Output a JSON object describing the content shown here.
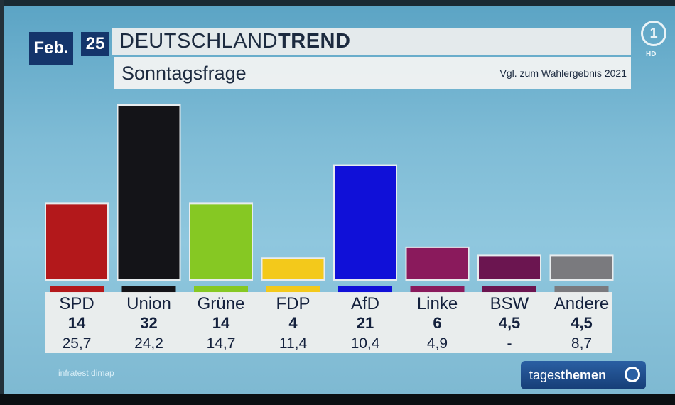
{
  "header": {
    "month": "Feb.",
    "year": "25",
    "title_regular": "DEUTSCHLAND",
    "title_bold": "TREND",
    "subtitle": "Sonntagsfrage",
    "comparison_note": "Vgl. zum Wahlergebnis 2021"
  },
  "footer": {
    "source": "infratest dimap",
    "program_regular": "tages",
    "program_bold": "themen"
  },
  "channel": {
    "logo": "1",
    "hd": "HD"
  },
  "chart_data": {
    "type": "bar",
    "categories": [
      "SPD",
      "Union",
      "Grüne",
      "FDP",
      "AfD",
      "Linke",
      "BSW",
      "Andere"
    ],
    "values": [
      14,
      32,
      14,
      4,
      21,
      6,
      4.5,
      4.5
    ],
    "value_labels": [
      "14",
      "32",
      "14",
      "4",
      "21",
      "6",
      "4,5",
      "4,5"
    ],
    "previous_labels": [
      "25,7",
      "24,2",
      "14,7",
      "11,4",
      "10,4",
      "4,9",
      "-",
      "8,7"
    ],
    "colors": [
      "#b3181b",
      "#141418",
      "#86c823",
      "#f3c91b",
      "#1010d8",
      "#8a1a5c",
      "#6b1550",
      "#7a7a7e"
    ],
    "title": "Sonntagsfrage",
    "ylim": [
      0,
      32
    ]
  }
}
